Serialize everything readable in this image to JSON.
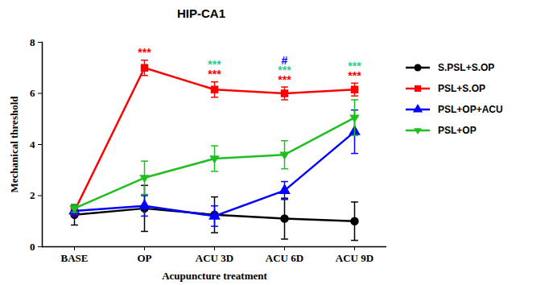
{
  "chart_data": {
    "type": "line",
    "title": "HIP-CA1",
    "x_label": "Acupuncture treatment",
    "y_label": "Mechanical threshold",
    "categories": [
      "BASE",
      "OP",
      "ACU 3D",
      "ACU 6D",
      "ACU 9D"
    ],
    "ylim": [
      0,
      8
    ],
    "yticks": [
      0,
      2,
      4,
      6,
      8
    ],
    "grid": false,
    "legend": "right",
    "series": [
      {
        "name": "S.PSL+S.OP",
        "color": "#000000",
        "marker": "circle",
        "values": [
          1.25,
          1.5,
          1.25,
          1.1,
          1.0
        ],
        "errors": [
          0.4,
          0.9,
          0.7,
          0.8,
          0.75
        ]
      },
      {
        "name": "PSL+S.OP",
        "color": "#ff0000",
        "marker": "square",
        "values": [
          1.4,
          7.0,
          6.15,
          6.0,
          6.15
        ],
        "errors": [
          0.2,
          0.3,
          0.3,
          0.25,
          0.25
        ]
      },
      {
        "name": "PSL+OP+ACU",
        "color": "#0000ff",
        "marker": "triangle",
        "values": [
          1.4,
          1.6,
          1.2,
          2.2,
          4.5
        ],
        "errors": [
          0.2,
          0.4,
          0.4,
          0.35,
          0.85
        ]
      },
      {
        "name": "PSL+OP",
        "color": "#1fbf1f",
        "marker": "triangle-down",
        "values": [
          1.5,
          2.7,
          3.45,
          3.6,
          5.05
        ],
        "errors": [
          0.15,
          0.65,
          0.5,
          0.55,
          0.7
        ]
      }
    ],
    "annotations": [
      {
        "category": "OP",
        "text": "***",
        "color": "#ff0000"
      },
      {
        "category": "ACU 3D",
        "text": "***",
        "color": "#ff0000"
      },
      {
        "category": "ACU 3D",
        "text": "***",
        "color": "#2ecc8a"
      },
      {
        "category": "ACU 6D",
        "text": "***",
        "color": "#ff0000"
      },
      {
        "category": "ACU 6D",
        "text": "***",
        "color": "#2ecc8a"
      },
      {
        "category": "ACU 6D",
        "text": "#",
        "color": "#0000ff"
      },
      {
        "category": "ACU 9D",
        "text": "***",
        "color": "#ff0000"
      },
      {
        "category": "ACU 9D",
        "text": "***",
        "color": "#2ecc8a"
      }
    ]
  }
}
